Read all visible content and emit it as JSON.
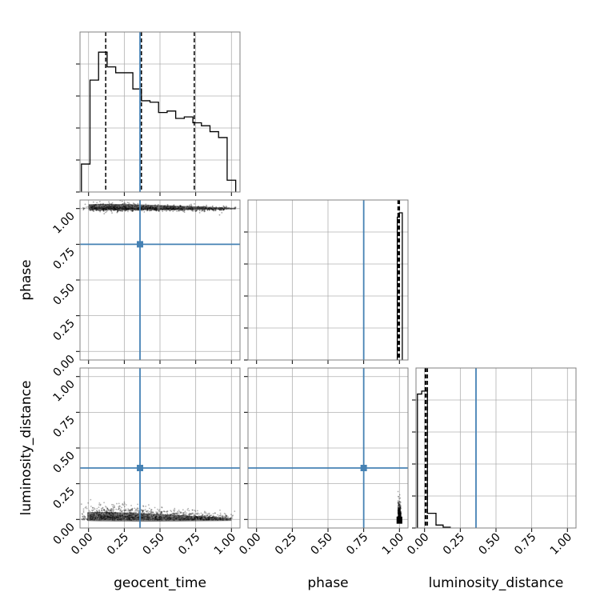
{
  "chart_data": {
    "type": "corner",
    "parameters": [
      "geocent_time",
      "phase",
      "luminosity_distance"
    ],
    "axis_labels": {
      "x": [
        "geocent_time",
        "phase",
        "luminosity_distance"
      ],
      "y": [
        "",
        "phase",
        "luminosity_distance"
      ]
    },
    "tick_values": [
      0.0,
      0.25,
      0.5,
      0.75,
      1.0
    ],
    "tick_labels": [
      "0.00",
      "0.25",
      "0.50",
      "0.75",
      "1.00"
    ],
    "ranges": [
      [
        -0.06,
        1.06
      ],
      [
        -0.06,
        1.06
      ],
      [
        -0.06,
        1.06
      ]
    ],
    "truths": [
      0.36,
      0.75,
      0.36
    ],
    "quantiles": {
      "geocent_time": [
        0.12,
        0.37,
        0.74
      ],
      "phase": [
        0.99,
        0.995,
        1.0
      ],
      "luminosity_distance": [
        0.005,
        0.01,
        0.02
      ]
    },
    "histograms": {
      "geocent_time": {
        "edges": [
          -0.05,
          0.01,
          0.07,
          0.13,
          0.19,
          0.25,
          0.31,
          0.37,
          0.43,
          0.49,
          0.55,
          0.61,
          0.67,
          0.73,
          0.79,
          0.85,
          0.91,
          0.97,
          1.03
        ],
        "counts": [
          0.19,
          0.76,
          0.95,
          0.85,
          0.81,
          0.81,
          0.7,
          0.62,
          0.61,
          0.54,
          0.55,
          0.5,
          0.51,
          0.47,
          0.45,
          0.41,
          0.37,
          0.08
        ]
      },
      "phase": {
        "edges": [
          0.985,
          1.0,
          1.02
        ],
        "counts": [
          0.97,
          1.0
        ]
      },
      "luminosity_distance": {
        "edges": [
          -0.05,
          -0.02,
          0.02,
          0.08,
          0.13,
          0.18
        ],
        "counts": [
          0.91,
          0.93,
          0.1,
          0.02,
          0.005
        ]
      }
    },
    "contour_colors": {
      "line": "#000000",
      "truth": "#4682b4"
    },
    "grid": true,
    "title": ""
  }
}
